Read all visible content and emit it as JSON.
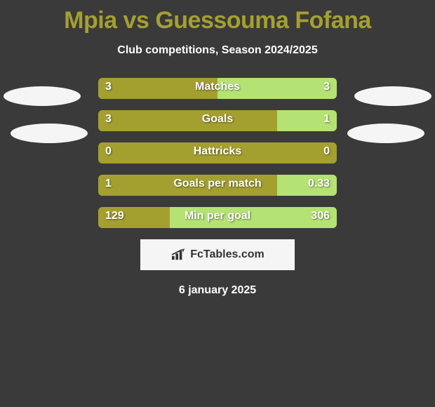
{
  "title": "Mpia vs Guessouma Fofana",
  "subtitle": "Club competitions, Season 2024/2025",
  "date": "6 january 2025",
  "logo": {
    "text": "FcTables.com"
  },
  "colors": {
    "background": "#3a3a3a",
    "title": "#a4a030",
    "bar_left": "#a4a030",
    "bar_right": "#b4e374",
    "text": "#ffffff",
    "logo_bg": "#f5f5f5",
    "logo_text": "#333333"
  },
  "stats": [
    {
      "label": "Matches",
      "left_value": "3",
      "right_value": "3",
      "left_num": 3,
      "right_num": 3,
      "left_pct": 50
    },
    {
      "label": "Goals",
      "left_value": "3",
      "right_value": "1",
      "left_num": 3,
      "right_num": 1,
      "left_pct": 75
    },
    {
      "label": "Hattricks",
      "left_value": "0",
      "right_value": "0",
      "left_num": 0,
      "right_num": 0,
      "left_pct": 100
    },
    {
      "label": "Goals per match",
      "left_value": "1",
      "right_value": "0.33",
      "left_num": 1,
      "right_num": 0.33,
      "left_pct": 75
    },
    {
      "label": "Min per goal",
      "left_value": "129",
      "right_value": "306",
      "left_num": 129,
      "right_num": 306,
      "left_pct": 30
    }
  ]
}
